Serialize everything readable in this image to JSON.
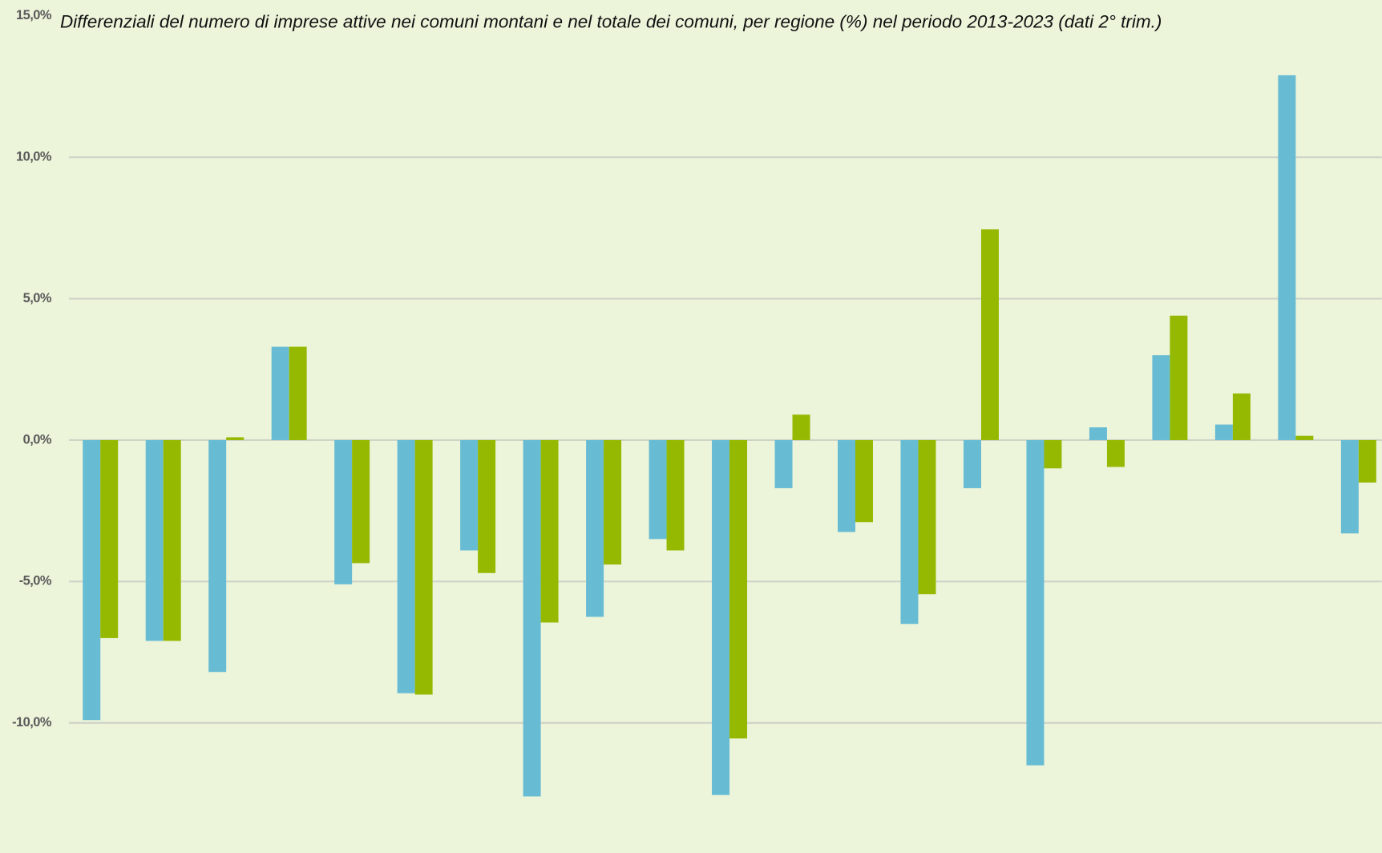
{
  "chart_data": {
    "type": "bar",
    "title": "Differenziali del numero di imprese attive nei comuni montani e nel totale dei comuni, per regione (%) nel periodo 2013-2023 (dati 2° trim.)",
    "categories": [
      null,
      null,
      null,
      null,
      null,
      null,
      null,
      null,
      null,
      null,
      null,
      null,
      null,
      null,
      null,
      null,
      null,
      null,
      null,
      null,
      null
    ],
    "series": [
      {
        "color": "#67bcd4",
        "values": [
          -9.9,
          -7.1,
          -8.2,
          3.3,
          -5.1,
          -8.95,
          -3.9,
          -12.6,
          -6.25,
          -3.5,
          -12.55,
          -1.7,
          -3.25,
          -6.5,
          -1.7,
          -11.5,
          0.45,
          3.0,
          0.55,
          12.9,
          -3.3
        ]
      },
      {
        "color": "#95b900",
        "values": [
          -7.0,
          -7.1,
          0.1,
          3.3,
          -4.35,
          -9.0,
          -4.7,
          -6.45,
          -4.4,
          -3.9,
          -10.55,
          0.9,
          -2.9,
          -5.45,
          7.45,
          -1.0,
          -0.95,
          4.4,
          1.65,
          0.15,
          -1.5
        ]
      }
    ],
    "ylim": [
      -14.6,
      15
    ],
    "yticks": [
      {
        "value": 15,
        "label": "15,0%"
      },
      {
        "value": 10,
        "label": "10,0%"
      },
      {
        "value": 5,
        "label": "5,0%"
      },
      {
        "value": 0,
        "label": "0,0%"
      },
      {
        "value": -5,
        "label": "-5,0%"
      },
      {
        "value": -10,
        "label": "-10,0%"
      }
    ],
    "grid": true
  }
}
